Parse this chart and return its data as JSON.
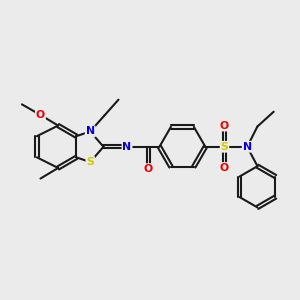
{
  "background_color": "#ebebeb",
  "bond_color": "#1a1a1a",
  "atom_colors": {
    "N": "#0000ee",
    "O": "#ee0000",
    "S": "#cccc00",
    "C": "#1a1a1a"
  },
  "figsize": [
    3.0,
    3.0
  ],
  "dpi": 100
}
